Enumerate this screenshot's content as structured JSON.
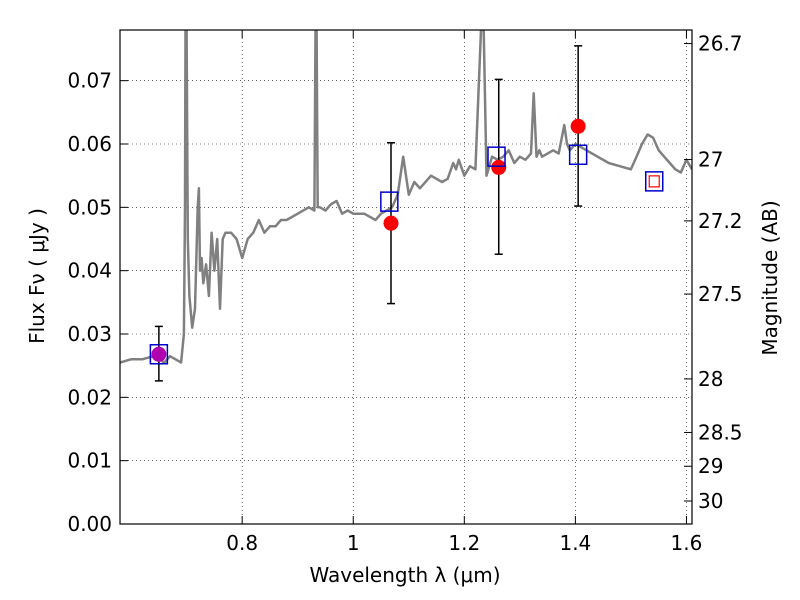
{
  "chart_data": {
    "type": "line",
    "title": "",
    "xlabel": "Wavelength  λ (μm)",
    "ylabel": "Flux  Fν  ( μJy )",
    "ylabel_right": "Magnitude (AB)",
    "xlim": [
      0.58,
      1.61
    ],
    "ylim": [
      0.0,
      0.078
    ],
    "grid": true,
    "x_ticks": [
      0.8,
      1.0,
      1.2,
      1.4,
      1.6
    ],
    "x_tick_labels": [
      "0.8",
      "1",
      "1.2",
      "1.4",
      "1.6"
    ],
    "y_ticks": [
      0.0,
      0.01,
      0.02,
      0.03,
      0.04,
      0.05,
      0.06,
      0.07
    ],
    "y_tick_labels": [
      "0.00",
      "0.01",
      "0.02",
      "0.03",
      "0.04",
      "0.05",
      "0.06",
      "0.07"
    ],
    "right_ticks": [
      {
        "mag": 26.7,
        "label": "26.7"
      },
      {
        "mag": 27.0,
        "label": "27"
      },
      {
        "mag": 27.2,
        "label": "27.2"
      },
      {
        "mag": 27.5,
        "label": "27.5"
      },
      {
        "mag": 28.0,
        "label": "28"
      },
      {
        "mag": 28.5,
        "label": "28.5"
      },
      {
        "mag": 29.0,
        "label": "29"
      },
      {
        "mag": 30.0,
        "label": "30"
      }
    ],
    "series": [
      {
        "kind": "spectrum",
        "color": "#808080",
        "x": [
          0.58,
          0.6,
          0.62,
          0.64,
          0.66,
          0.67,
          0.68,
          0.69,
          0.695,
          0.697,
          0.698,
          0.7,
          0.702,
          0.705,
          0.71,
          0.715,
          0.72,
          0.722,
          0.724,
          0.727,
          0.73,
          0.735,
          0.74,
          0.745,
          0.75,
          0.755,
          0.76,
          0.765,
          0.77,
          0.78,
          0.79,
          0.8,
          0.81,
          0.82,
          0.83,
          0.84,
          0.85,
          0.86,
          0.87,
          0.88,
          0.9,
          0.92,
          0.93,
          0.932,
          0.934,
          0.936,
          0.94,
          0.95,
          0.96,
          0.97,
          0.98,
          0.99,
          1.0,
          1.02,
          1.04,
          1.05,
          1.07,
          1.08,
          1.09,
          1.1,
          1.11,
          1.12,
          1.14,
          1.16,
          1.17,
          1.18,
          1.185,
          1.19,
          1.2,
          1.21,
          1.22,
          1.23,
          1.235,
          1.24,
          1.25,
          1.26,
          1.27,
          1.28,
          1.29,
          1.3,
          1.31,
          1.32,
          1.325,
          1.33,
          1.335,
          1.34,
          1.36,
          1.37,
          1.38,
          1.385,
          1.39,
          1.4,
          1.42,
          1.44,
          1.46,
          1.48,
          1.5,
          1.51,
          1.52,
          1.53,
          1.54,
          1.55,
          1.56,
          1.57,
          1.58,
          1.59,
          1.6,
          1.61
        ],
        "y": [
          0.0255,
          0.026,
          0.026,
          0.0265,
          0.0255,
          0.0265,
          0.026,
          0.0255,
          0.03,
          0.05,
          0.078,
          0.078,
          0.045,
          0.036,
          0.031,
          0.034,
          0.05,
          0.053,
          0.04,
          0.042,
          0.038,
          0.041,
          0.036,
          0.046,
          0.04,
          0.045,
          0.034,
          0.045,
          0.046,
          0.046,
          0.045,
          0.042,
          0.045,
          0.046,
          0.048,
          0.046,
          0.047,
          0.047,
          0.048,
          0.048,
          0.049,
          0.05,
          0.0495,
          0.078,
          0.078,
          0.05,
          0.05,
          0.0495,
          0.0505,
          0.051,
          0.049,
          0.0495,
          0.049,
          0.049,
          0.048,
          0.049,
          0.05,
          0.052,
          0.058,
          0.052,
          0.054,
          0.053,
          0.055,
          0.054,
          0.0545,
          0.057,
          0.056,
          0.0575,
          0.055,
          0.0565,
          0.056,
          0.078,
          0.078,
          0.055,
          0.058,
          0.0575,
          0.058,
          0.059,
          0.057,
          0.058,
          0.0575,
          0.0585,
          0.068,
          0.058,
          0.059,
          0.058,
          0.059,
          0.0585,
          0.063,
          0.06,
          0.059,
          0.06,
          0.059,
          0.058,
          0.057,
          0.0565,
          0.056,
          0.058,
          0.06,
          0.0615,
          0.061,
          0.059,
          0.058,
          0.057,
          0.056,
          0.0555,
          0.0575,
          0.056
        ]
      },
      {
        "kind": "observed",
        "color": "#ff0000",
        "x": [
          0.65,
          1.068,
          1.262,
          1.405
        ],
        "y": [
          0.0268,
          0.0475,
          0.0563,
          0.0628
        ],
        "yerr_low": [
          0.0226,
          0.0348,
          0.0426,
          0.0502
        ],
        "yerr_high": [
          0.0312,
          0.0602,
          0.0702,
          0.0755
        ]
      },
      {
        "kind": "model_bandpass",
        "color": "#0000cc",
        "x": [
          0.65,
          1.065,
          1.258,
          1.405,
          1.542
        ],
        "y": [
          0.0268,
          0.0509,
          0.058,
          0.0583,
          0.0541
        ]
      },
      {
        "kind": "upper_limit",
        "color": "#ff0000",
        "x": [
          1.542
        ],
        "y": [
          0.0541
        ]
      }
    ]
  }
}
